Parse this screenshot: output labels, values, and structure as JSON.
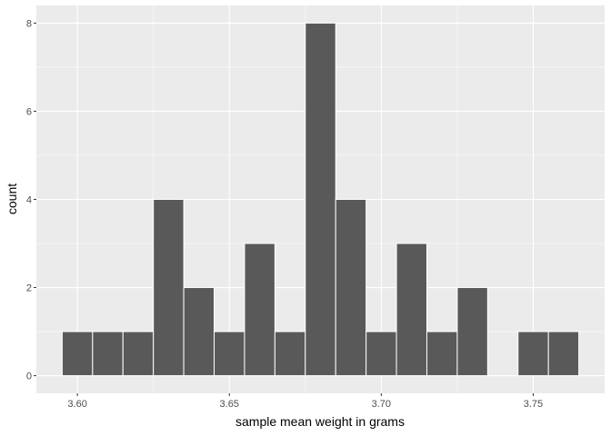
{
  "chart_data": {
    "type": "bar",
    "xlabel": "sample mean weight in grams",
    "ylabel": "count",
    "xlim": [
      3.5865,
      3.7735
    ],
    "ylim": [
      -0.4,
      8.4
    ],
    "x_ticks": [
      "3.60",
      "3.65",
      "3.70",
      "3.75"
    ],
    "y_ticks": [
      "0",
      "2",
      "4",
      "6",
      "8"
    ],
    "bin_width": 0.01,
    "bins": [
      {
        "x": 3.6,
        "count": 1
      },
      {
        "x": 3.61,
        "count": 1
      },
      {
        "x": 3.62,
        "count": 1
      },
      {
        "x": 3.63,
        "count": 4
      },
      {
        "x": 3.64,
        "count": 2
      },
      {
        "x": 3.65,
        "count": 1
      },
      {
        "x": 3.66,
        "count": 3
      },
      {
        "x": 3.67,
        "count": 1
      },
      {
        "x": 3.68,
        "count": 8
      },
      {
        "x": 3.69,
        "count": 4
      },
      {
        "x": 3.7,
        "count": 1
      },
      {
        "x": 3.71,
        "count": 3
      },
      {
        "x": 3.72,
        "count": 1
      },
      {
        "x": 3.73,
        "count": 2
      },
      {
        "x": 3.74,
        "count": 0
      },
      {
        "x": 3.75,
        "count": 1
      },
      {
        "x": 3.76,
        "count": 1
      }
    ],
    "grid": true,
    "colors": {
      "panel": "#ebebeb",
      "grid": "#ffffff",
      "bar_fill": "#595959",
      "bar_outline": "#ffffff"
    }
  }
}
